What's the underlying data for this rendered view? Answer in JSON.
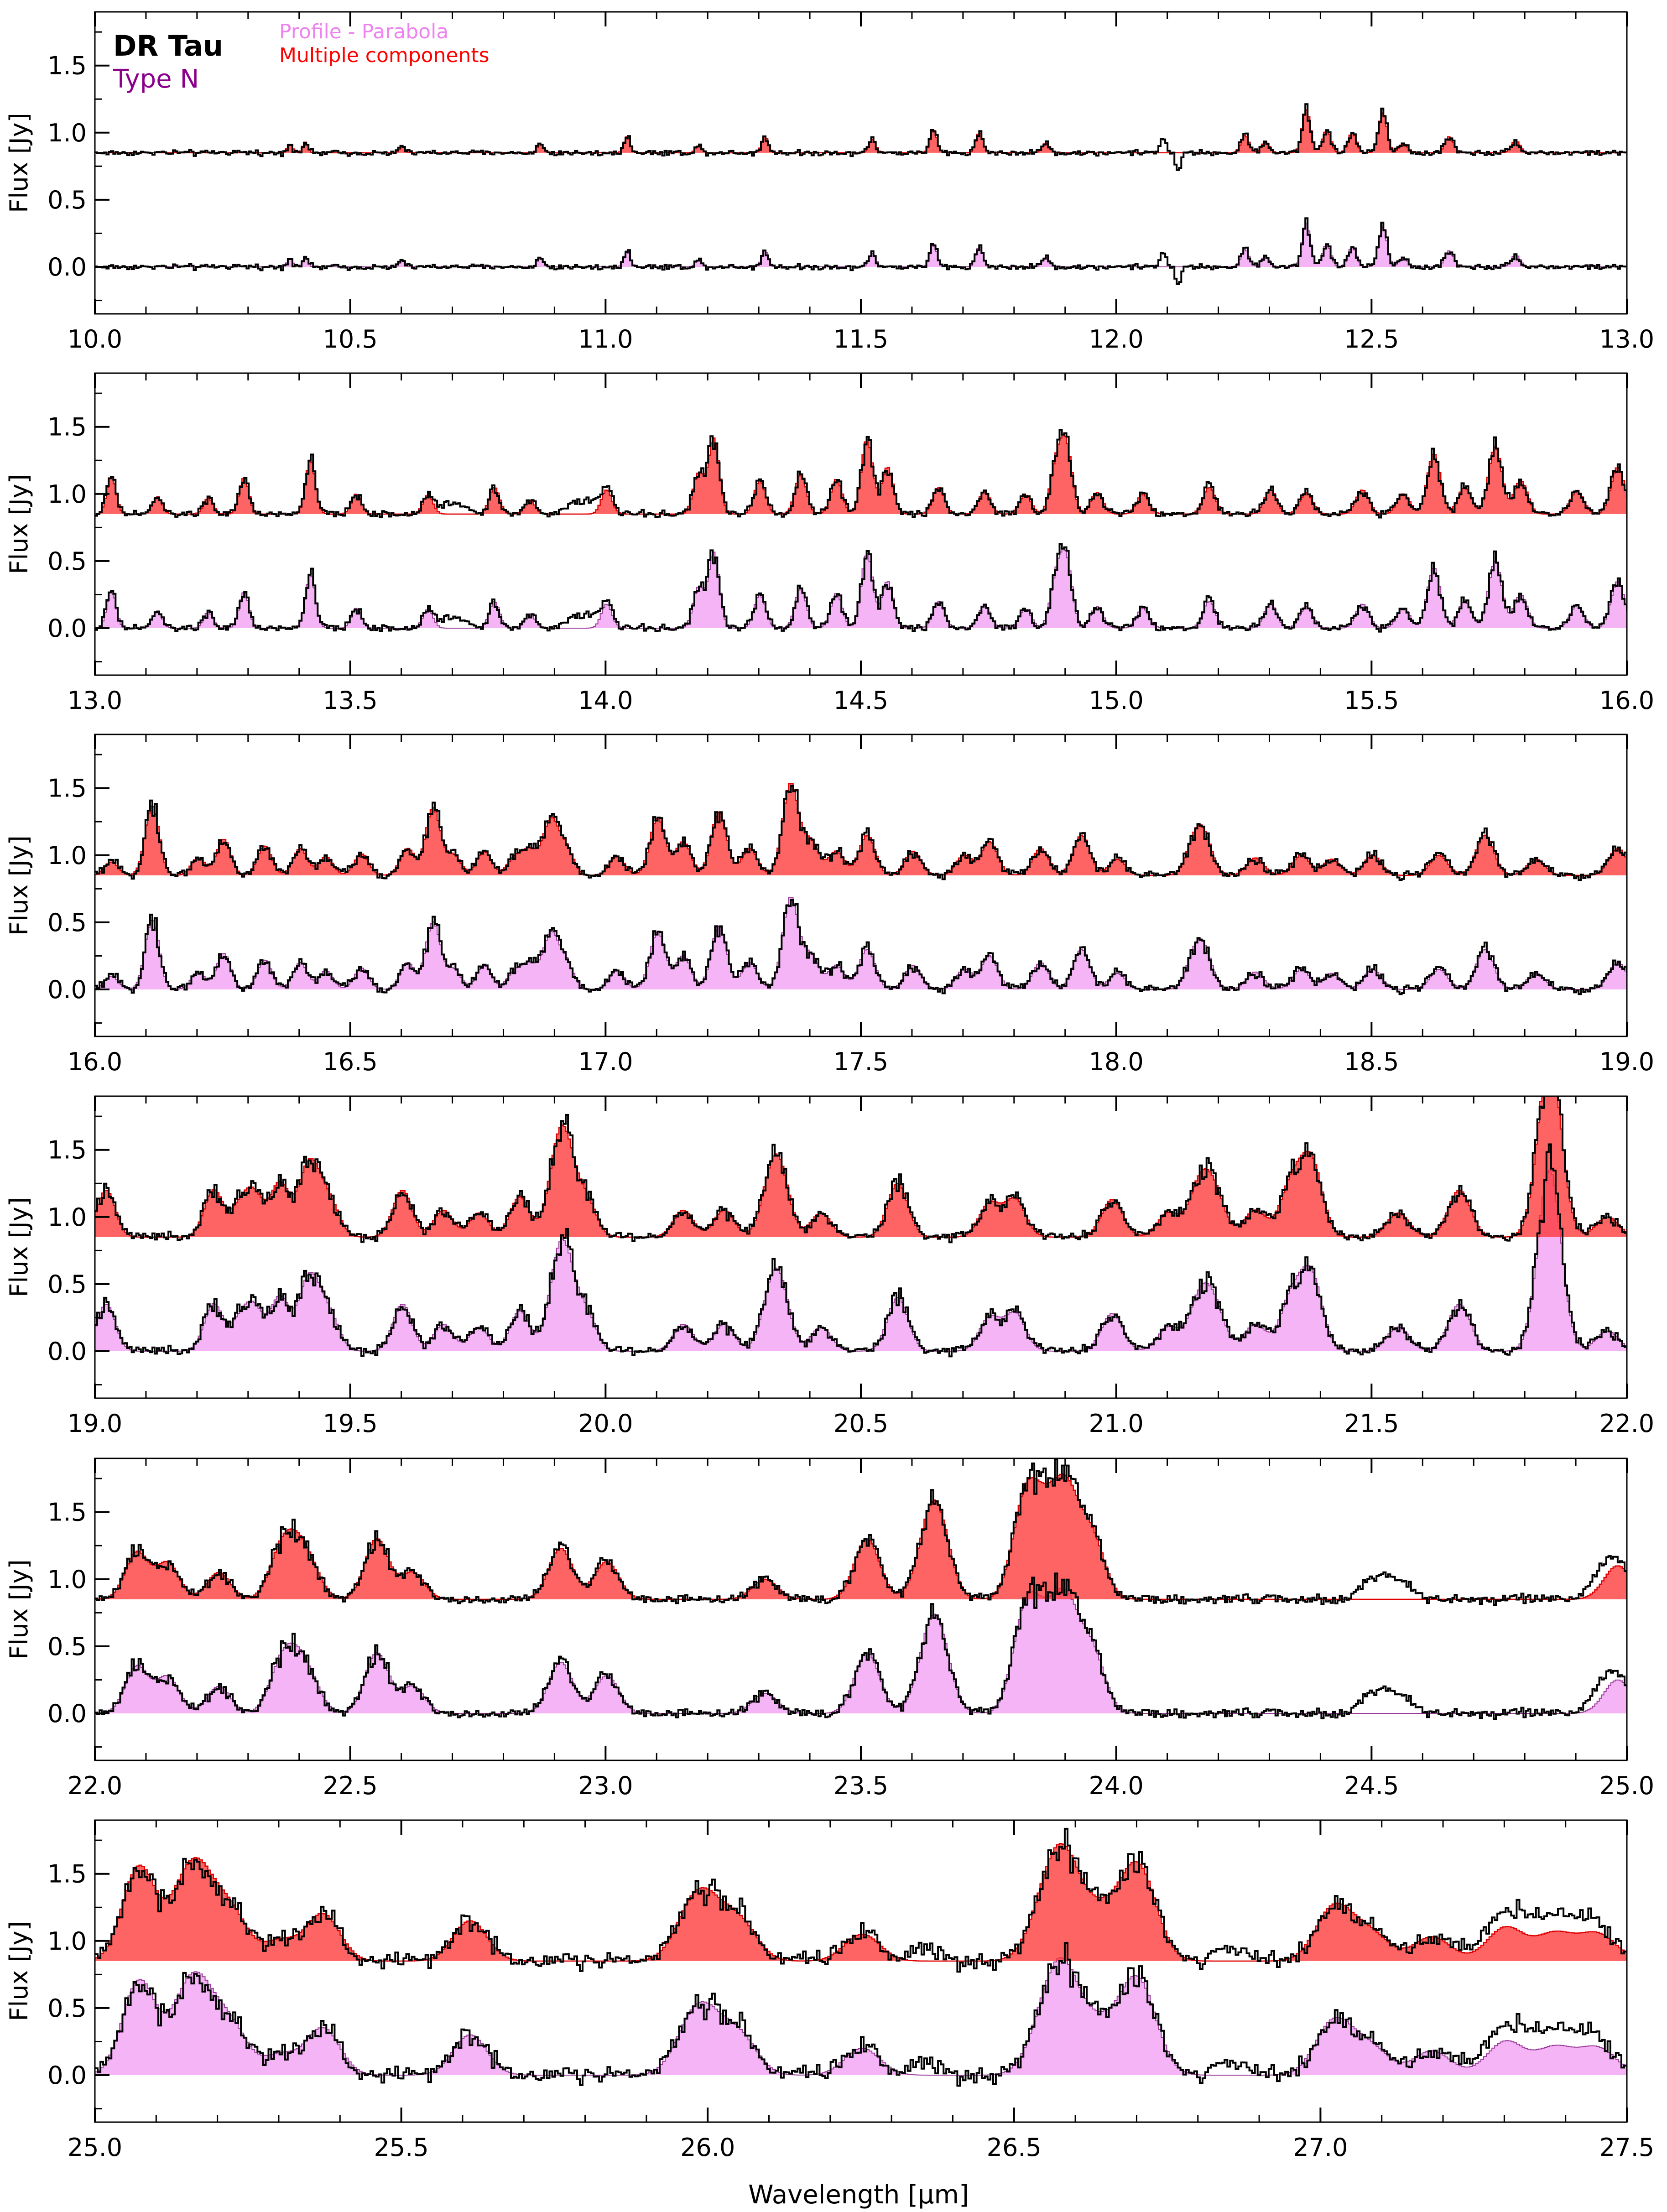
{
  "figure": {
    "target_name": "DR Tau",
    "type_label": "Type N",
    "legend": [
      {
        "label": "Profile - Parabola",
        "color": "#ee82ee"
      },
      {
        "label": "Multiple components",
        "color": "#ff0000"
      }
    ],
    "ylabel": "Flux [Jy]",
    "xlabel": "Wavelength [μm]"
  },
  "colors": {
    "observed": "#000000",
    "multi_fill": "#ff3030",
    "multi_line": "#e00000",
    "parabola_fill": "#ee82ee",
    "parabola_line": "#9a3a9a",
    "target": "#000000",
    "type": "#8b008b"
  },
  "chart_data": [
    {
      "type": "line",
      "panel": 1,
      "xlim": [
        10.0,
        13.0
      ],
      "ylim": [
        -0.35,
        1.9
      ],
      "xticks": [
        "10.0",
        "10.5",
        "11.0",
        "11.5",
        "12.0",
        "12.5",
        "13.0"
      ],
      "yticks": [
        "0.0",
        "0.5",
        "1.0",
        "1.5"
      ],
      "offset_continuum": 0.85,
      "noise": 0.012,
      "lines": [
        [
          10.38,
          0.07
        ],
        [
          10.41,
          0.08
        ],
        [
          10.6,
          0.05
        ],
        [
          10.87,
          0.07
        ],
        [
          11.04,
          0.12
        ],
        [
          11.18,
          0.05
        ],
        [
          11.31,
          0.12
        ],
        [
          11.52,
          0.1
        ],
        [
          11.64,
          0.17
        ],
        [
          11.73,
          0.15
        ],
        [
          11.86,
          0.07
        ],
        [
          12.25,
          0.13
        ],
        [
          12.29,
          0.08
        ],
        [
          12.37,
          0.32
        ],
        [
          12.41,
          0.17
        ],
        [
          12.46,
          0.15
        ],
        [
          12.52,
          0.3
        ],
        [
          12.56,
          0.07
        ],
        [
          12.65,
          0.12
        ],
        [
          12.78,
          0.09
        ]
      ],
      "features": [
        [
          12.08,
          12.1,
          0.12
        ],
        [
          12.11,
          12.13,
          -0.13
        ]
      ]
    },
    {
      "type": "line",
      "panel": 2,
      "xlim": [
        13.0,
        16.0
      ],
      "ylim": [
        -0.35,
        1.9
      ],
      "xticks": [
        "13.0",
        "13.5",
        "14.0",
        "14.5",
        "15.0",
        "15.5",
        "16.0"
      ],
      "yticks": [
        "0.0",
        "0.5",
        "1.0",
        "1.5"
      ],
      "offset_continuum": 0.85,
      "noise": 0.015,
      "lines": [
        [
          13.03,
          0.28
        ],
        [
          13.12,
          0.13
        ],
        [
          13.22,
          0.12
        ],
        [
          13.29,
          0.27
        ],
        [
          13.42,
          0.4
        ],
        [
          13.51,
          0.15
        ],
        [
          13.65,
          0.14
        ],
        [
          13.78,
          0.2
        ],
        [
          13.85,
          0.1
        ],
        [
          14.0,
          0.18
        ],
        [
          14.18,
          0.3
        ],
        [
          14.21,
          0.56
        ],
        [
          14.3,
          0.25
        ],
        [
          14.38,
          0.3
        ],
        [
          14.45,
          0.26
        ],
        [
          14.51,
          0.56
        ],
        [
          14.55,
          0.35
        ],
        [
          14.65,
          0.2
        ],
        [
          14.74,
          0.17
        ],
        [
          14.82,
          0.14
        ],
        [
          14.88,
          0.34
        ],
        [
          14.9,
          0.48
        ],
        [
          14.96,
          0.16
        ],
        [
          15.05,
          0.15
        ],
        [
          15.18,
          0.2
        ],
        [
          15.3,
          0.18
        ],
        [
          15.37,
          0.16
        ],
        [
          15.48,
          0.18
        ],
        [
          15.56,
          0.15
        ],
        [
          15.62,
          0.45
        ],
        [
          15.68,
          0.2
        ],
        [
          15.74,
          0.5
        ],
        [
          15.79,
          0.25
        ],
        [
          15.9,
          0.17
        ],
        [
          15.98,
          0.35
        ]
      ],
      "features": [
        [
          13.65,
          13.75,
          0.08
        ],
        [
          13.9,
          14.02,
          0.1
        ]
      ]
    },
    {
      "type": "line",
      "panel": 3,
      "xlim": [
        16.0,
        19.0
      ],
      "ylim": [
        -0.35,
        1.9
      ],
      "xticks": [
        "16.0",
        "16.5",
        "17.0",
        "17.5",
        "18.0",
        "18.5",
        "19.0"
      ],
      "yticks": [
        "0.0",
        "0.5",
        "1.0",
        "1.5"
      ],
      "offset_continuum": 0.85,
      "noise": 0.018,
      "lines": [
        [
          16.03,
          0.1
        ],
        [
          16.11,
          0.52
        ],
        [
          16.2,
          0.13
        ],
        [
          16.25,
          0.27
        ],
        [
          16.33,
          0.22
        ],
        [
          16.4,
          0.2
        ],
        [
          16.45,
          0.14
        ],
        [
          16.52,
          0.16
        ],
        [
          16.61,
          0.2
        ],
        [
          16.66,
          0.5
        ],
        [
          16.7,
          0.15
        ],
        [
          16.76,
          0.18
        ],
        [
          16.82,
          0.13
        ],
        [
          16.85,
          0.18
        ],
        [
          16.89,
          0.4
        ],
        [
          16.92,
          0.2
        ],
        [
          17.02,
          0.14
        ],
        [
          17.1,
          0.43
        ],
        [
          17.15,
          0.25
        ],
        [
          17.22,
          0.47
        ],
        [
          17.28,
          0.2
        ],
        [
          17.36,
          0.68
        ],
        [
          17.4,
          0.25
        ],
        [
          17.45,
          0.18
        ],
        [
          17.51,
          0.3
        ],
        [
          17.6,
          0.18
        ],
        [
          17.7,
          0.15
        ],
        [
          17.75,
          0.25
        ],
        [
          17.85,
          0.2
        ],
        [
          17.93,
          0.3
        ],
        [
          18.0,
          0.12
        ],
        [
          18.15,
          0.2
        ],
        [
          18.17,
          0.25
        ],
        [
          18.27,
          0.13
        ],
        [
          18.36,
          0.15
        ],
        [
          18.42,
          0.12
        ],
        [
          18.5,
          0.15
        ],
        [
          18.63,
          0.15
        ],
        [
          18.72,
          0.3
        ],
        [
          18.82,
          0.12
        ],
        [
          18.98,
          0.2
        ]
      ],
      "features": []
    },
    {
      "type": "line",
      "panel": 4,
      "xlim": [
        19.0,
        22.0
      ],
      "ylim": [
        -0.35,
        1.9
      ],
      "xticks": [
        "19.0",
        "19.5",
        "20.0",
        "20.5",
        "21.0",
        "21.5",
        "22.0"
      ],
      "yticks": [
        "0.0",
        "0.5",
        "1.0",
        "1.5"
      ],
      "offset_continuum": 0.85,
      "noise": 0.02,
      "lines": [
        [
          19.02,
          0.35
        ],
        [
          19.23,
          0.35
        ],
        [
          19.28,
          0.2
        ],
        [
          19.31,
          0.3
        ],
        [
          19.36,
          0.4
        ],
        [
          19.41,
          0.35
        ],
        [
          19.43,
          0.3
        ],
        [
          19.46,
          0.22
        ],
        [
          19.6,
          0.35
        ],
        [
          19.68,
          0.2
        ],
        [
          19.75,
          0.18
        ],
        [
          19.83,
          0.3
        ],
        [
          19.9,
          0.38
        ],
        [
          19.92,
          0.55
        ],
        [
          19.96,
          0.28
        ],
        [
          20.15,
          0.2
        ],
        [
          20.23,
          0.2
        ],
        [
          20.32,
          0.3
        ],
        [
          20.34,
          0.4
        ],
        [
          20.42,
          0.18
        ],
        [
          20.57,
          0.4
        ],
        [
          20.75,
          0.25
        ],
        [
          20.8,
          0.28
        ],
        [
          20.99,
          0.28
        ],
        [
          21.1,
          0.18
        ],
        [
          21.16,
          0.35
        ],
        [
          21.19,
          0.3
        ],
        [
          21.27,
          0.2
        ],
        [
          21.34,
          0.38
        ],
        [
          21.38,
          0.55
        ],
        [
          21.55,
          0.18
        ],
        [
          21.67,
          0.35
        ],
        [
          21.84,
          0.5
        ],
        [
          21.85,
          0.88
        ],
        [
          21.96,
          0.15
        ]
      ],
      "features": []
    },
    {
      "type": "line",
      "panel": 5,
      "xlim": [
        22.0,
        25.0
      ],
      "ylim": [
        -0.35,
        1.9
      ],
      "xticks": [
        "22.0",
        "22.5",
        "23.0",
        "23.5",
        "24.0",
        "24.5",
        "25.0"
      ],
      "yticks": [
        "0.0",
        "0.5",
        "1.0",
        "1.5"
      ],
      "offset_continuum": 0.85,
      "noise": 0.02,
      "lines": [
        [
          22.08,
          0.35
        ],
        [
          22.14,
          0.27
        ],
        [
          22.24,
          0.2
        ],
        [
          22.36,
          0.3
        ],
        [
          22.39,
          0.3
        ],
        [
          22.42,
          0.2
        ],
        [
          22.55,
          0.45
        ],
        [
          22.62,
          0.2
        ],
        [
          22.91,
          0.38
        ],
        [
          23.0,
          0.28
        ],
        [
          23.31,
          0.15
        ],
        [
          23.51,
          0.45
        ],
        [
          23.63,
          0.35
        ],
        [
          23.65,
          0.45
        ],
        [
          23.82,
          0.72
        ],
        [
          23.86,
          0.45
        ],
        [
          23.9,
          0.72
        ],
        [
          23.95,
          0.45
        ],
        [
          24.98,
          0.25
        ]
      ],
      "features": [
        [
          24.45,
          24.6,
          0.18
        ],
        [
          24.9,
          25.0,
          0.12
        ]
      ]
    },
    {
      "type": "line",
      "panel": 6,
      "xlim": [
        25.0,
        27.5
      ],
      "ylim": [
        -0.35,
        1.9
      ],
      "xticks": [
        "25.0",
        "25.5",
        "26.0",
        "26.5",
        "27.0",
        "27.5"
      ],
      "yticks": [
        "0.0",
        "0.5",
        "1.0",
        "1.5"
      ],
      "offset_continuum": 0.85,
      "noise": 0.04,
      "lines": [
        [
          25.07,
          0.7
        ],
        [
          25.14,
          0.35
        ],
        [
          25.17,
          0.5
        ],
        [
          25.22,
          0.35
        ],
        [
          25.3,
          0.15
        ],
        [
          25.37,
          0.35
        ],
        [
          25.61,
          0.3
        ],
        [
          25.97,
          0.3
        ],
        [
          26.0,
          0.3
        ],
        [
          26.05,
          0.28
        ],
        [
          26.25,
          0.2
        ],
        [
          26.55,
          0.3
        ],
        [
          26.58,
          0.65
        ],
        [
          26.64,
          0.3
        ],
        [
          26.7,
          0.7
        ],
        [
          27.02,
          0.4
        ],
        [
          27.08,
          0.2
        ],
        [
          27.18,
          0.18
        ],
        [
          27.3,
          0.25
        ],
        [
          27.38,
          0.2
        ],
        [
          27.45,
          0.2
        ]
      ],
      "features": [
        [
          26.3,
          26.4,
          0.1
        ],
        [
          26.8,
          26.9,
          0.1
        ],
        [
          27.2,
          27.5,
          0.15
        ]
      ]
    }
  ]
}
